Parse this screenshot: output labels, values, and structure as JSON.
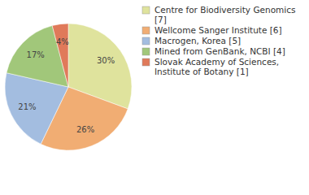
{
  "chart_data": {
    "type": "pie",
    "categories": [
      "Centre for Biodiversity Genomics [7]",
      "Wellcome Sanger Institute [6]",
      "Macrogen, Korea [5]",
      "Mined from GenBank, NCBI [4]",
      "Slovak Academy of Sciences, Institute of Botany [1]"
    ],
    "values": [
      30,
      26,
      21,
      17,
      4
    ],
    "value_labels": [
      "30%",
      "26%",
      "21%",
      "17%",
      "4%"
    ],
    "colors": [
      "#dfe39d",
      "#f1ad73",
      "#a3bde0",
      "#a1c77a",
      "#e07a5a"
    ],
    "data_labels": true,
    "legend": "right"
  }
}
